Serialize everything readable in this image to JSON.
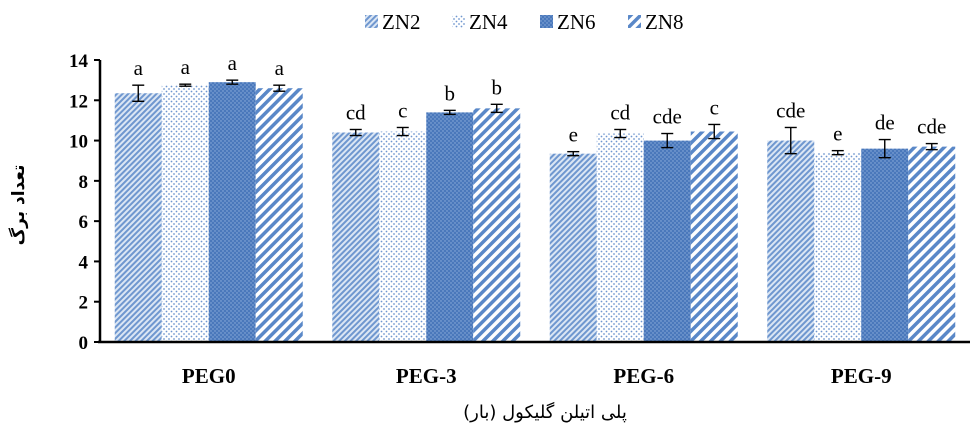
{
  "chart_data": {
    "type": "bar",
    "xlabel": "پلی اتیلن گلیکول (بار)",
    "ylabel": "تعداد برگ",
    "ylim": [
      0,
      14
    ],
    "yticks": [
      "0",
      "2",
      "4",
      "6",
      "8",
      "10",
      "12",
      "14"
    ],
    "grid": false,
    "legend_position": "top",
    "categories": [
      "PEG0",
      "PEG-3",
      "PEG-6",
      "PEG-9"
    ],
    "series": [
      {
        "name": "ZN2",
        "color": "#93b3dd",
        "pattern": "fine-diagonal",
        "values": [
          12.35,
          10.4,
          9.35,
          10.0
        ],
        "errors": [
          0.4,
          0.15,
          0.1,
          0.65
        ],
        "letters": [
          "a",
          "cd",
          "e",
          "cde"
        ]
      },
      {
        "name": "ZN4",
        "color": "#8fb0d9",
        "pattern": "dots",
        "values": [
          12.75,
          10.45,
          10.35,
          9.4
        ],
        "errors": [
          0.05,
          0.2,
          0.2,
          0.1
        ],
        "letters": [
          "a",
          "c",
          "cd",
          "e"
        ]
      },
      {
        "name": "ZN6",
        "color": "#4f7fc2",
        "pattern": "dark-dots",
        "values": [
          12.9,
          11.4,
          10.0,
          9.6
        ],
        "errors": [
          0.1,
          0.1,
          0.35,
          0.45
        ],
        "letters": [
          "a",
          "b",
          "cde",
          "de"
        ]
      },
      {
        "name": "ZN8",
        "color": "#5a88c8",
        "pattern": "wide-diagonal",
        "values": [
          12.6,
          11.6,
          10.45,
          9.7
        ],
        "errors": [
          0.15,
          0.2,
          0.35,
          0.15
        ],
        "letters": [
          "a",
          "b",
          "c",
          "cde"
        ]
      }
    ]
  }
}
